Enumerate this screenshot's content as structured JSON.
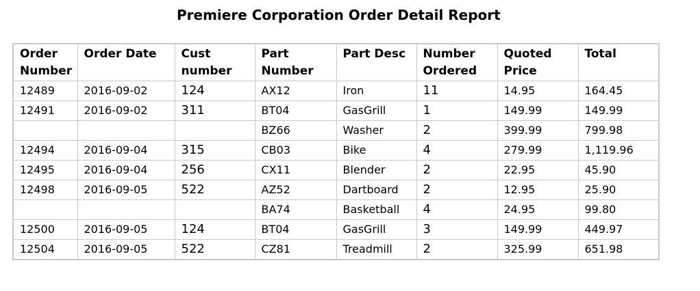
{
  "report": {
    "title": "Premiere Corporation Order Detail Report"
  },
  "table": {
    "headers": [
      "Order Number",
      "Order Date",
      "Cust number",
      "Part Number",
      "Part Desc",
      "Number Ordered",
      "Quoted Price",
      "Total"
    ],
    "rows": [
      [
        "12489",
        "2016-09-02",
        "124",
        "AX12",
        "Iron",
        "11",
        "14.95",
        "164.45"
      ],
      [
        "12491",
        "2016-09-02",
        "311",
        "BT04",
        "GasGrill",
        "1",
        "149.99",
        "149.99"
      ],
      [
        "",
        "",
        "",
        "BZ66",
        "Washer",
        "2",
        "399.99",
        "799.98"
      ],
      [
        "12494",
        "2016-09-04",
        "315",
        "CB03",
        "Bike",
        "4",
        "279.99",
        "1,119.96"
      ],
      [
        "12495",
        "2016-09-04",
        "256",
        "CX11",
        "Blender",
        "2",
        "22.95",
        "45.90"
      ],
      [
        "12498",
        "2016-09-05",
        "522",
        "AZ52",
        "Dartboard",
        "2",
        "12.95",
        "25.90"
      ],
      [
        "",
        "",
        "",
        "BA74",
        "Basketball",
        "4",
        "24.95",
        "99.80"
      ],
      [
        "12500",
        "2016-09-05",
        "124",
        "BT04",
        "GasGrill",
        "3",
        "149.99",
        "449.97"
      ],
      [
        "12504",
        "2016-09-05",
        "522",
        "CZ81",
        "Treadmill",
        "2",
        "325.99",
        "651.98"
      ]
    ]
  }
}
